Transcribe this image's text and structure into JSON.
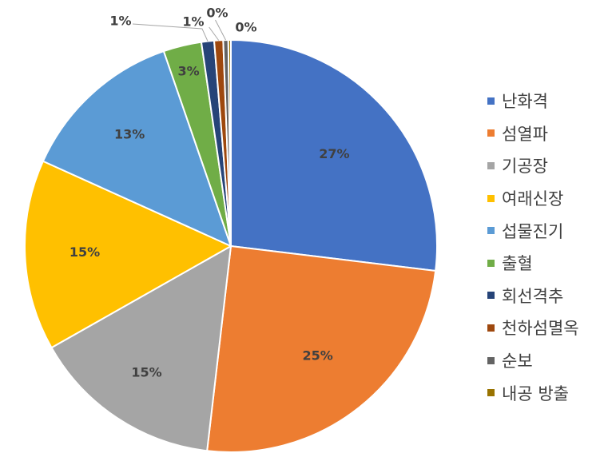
{
  "chart_data": {
    "type": "pie",
    "title": "",
    "legend_position": "right",
    "start_angle_deg": 0,
    "direction": "clockwise",
    "slices": [
      {
        "label": "난화격",
        "value": 27,
        "value_label": "27%",
        "color": "#4472C4"
      },
      {
        "label": "섬열파",
        "value": 25,
        "value_label": "25%",
        "color": "#ED7D31"
      },
      {
        "label": "기공장",
        "value": 15,
        "value_label": "15%",
        "color": "#A5A5A5"
      },
      {
        "label": "여래신장",
        "value": 15,
        "value_label": "15%",
        "color": "#FFC000"
      },
      {
        "label": "섭물진기",
        "value": 13,
        "value_label": "13%",
        "color": "#5B9BD5"
      },
      {
        "label": "출혈",
        "value": 3,
        "value_label": "3%",
        "color": "#70AD47"
      },
      {
        "label": "회선격추",
        "value": 1,
        "value_label": "1%",
        "color": "#264478"
      },
      {
        "label": "천하섬멸옥",
        "value": 0.7,
        "value_label": "1%",
        "color": "#9E480E"
      },
      {
        "label": "순보",
        "value": 0.4,
        "value_label": "0%",
        "color": "#636363"
      },
      {
        "label": "내공 방출",
        "value": 0.2,
        "value_label": "0%",
        "color": "#997300"
      }
    ]
  }
}
